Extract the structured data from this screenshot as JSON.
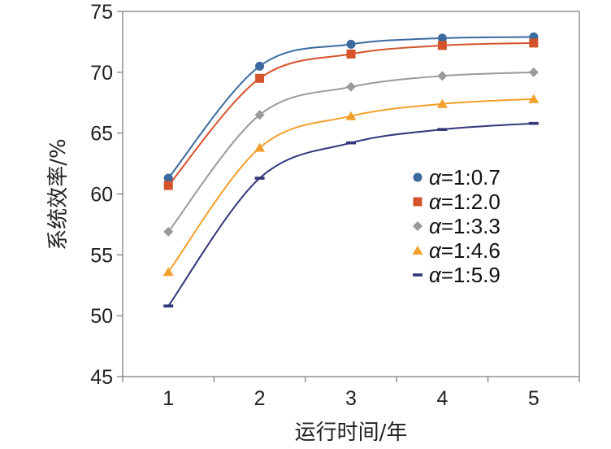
{
  "chart_data": {
    "type": "line",
    "xlabel": "运行时间/年",
    "ylabel": "系统效率/%",
    "x": [
      1,
      2,
      3,
      4,
      5
    ],
    "xlim": [
      0.5,
      5.5
    ],
    "ylim": [
      45,
      75
    ],
    "xticks": [
      "1",
      "2",
      "3",
      "4",
      "5"
    ],
    "yticks": [
      "45",
      "50",
      "55",
      "60",
      "65",
      "70",
      "75"
    ],
    "grid": false,
    "legend_position": "center-right",
    "series": [
      {
        "name_prefix": "α",
        "name_value": "=1:0.7",
        "values": [
          61.3,
          70.5,
          72.3,
          72.8,
          72.9
        ],
        "color": "#3a6a9e",
        "marker": "circle"
      },
      {
        "name_prefix": "α",
        "name_value": "=1:2.0",
        "values": [
          60.7,
          69.5,
          71.5,
          72.2,
          72.4
        ],
        "color": "#d4532b",
        "marker": "square"
      },
      {
        "name_prefix": "α",
        "name_value": "=1:3.3",
        "values": [
          56.9,
          66.5,
          68.8,
          69.7,
          70.0
        ],
        "color": "#9a9a9a",
        "marker": "diamond"
      },
      {
        "name_prefix": "α",
        "name_value": "=1:4.6",
        "values": [
          53.6,
          63.8,
          66.4,
          67.4,
          67.8
        ],
        "color": "#f2a02b",
        "marker": "triangle"
      },
      {
        "name_prefix": "α",
        "name_value": "=1:5.9",
        "values": [
          50.8,
          61.3,
          64.2,
          65.3,
          65.8
        ],
        "color": "#33377a",
        "marker": "dash"
      }
    ]
  }
}
